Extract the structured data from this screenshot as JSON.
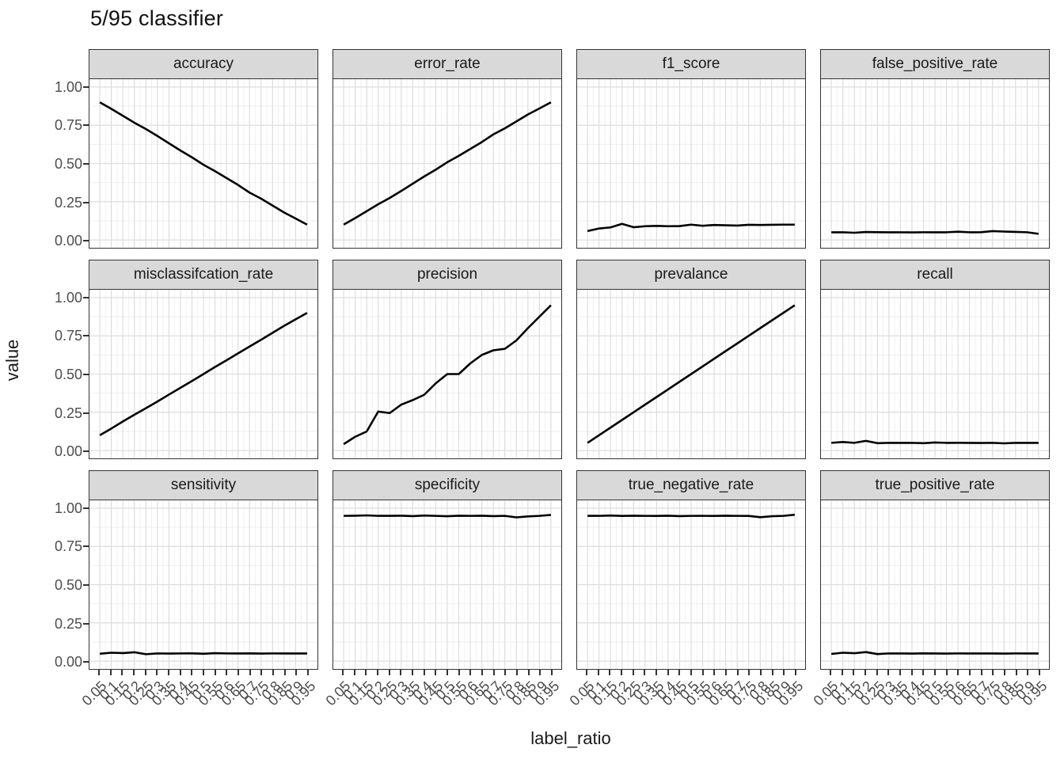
{
  "title": "5/95 classifier",
  "axes": {
    "x_title": "label_ratio",
    "y_title": "value",
    "x_tick_labels": [
      "0.05",
      "0.1",
      "0.15",
      "0.2",
      "0.25",
      "0.3",
      "0.35",
      "0.4",
      "0.45",
      "0.5",
      "0.55",
      "0.6",
      "0.65",
      "0.7",
      "0.75",
      "0.8",
      "0.85",
      "0.9",
      "0.95"
    ],
    "y_tick_labels": [
      "1.00",
      "0.75",
      "0.50",
      "0.25",
      "0.00"
    ],
    "y_tick_values": [
      1.0,
      0.75,
      0.5,
      0.25,
      0.0
    ]
  },
  "colors": {
    "line": "#000000",
    "strip_bg": "#d9d9d9",
    "panel_bg": "#ffffff",
    "panel_border": "#333333",
    "grid_major": "#dddddd",
    "grid_minor": "#efefef",
    "tick": "#333333",
    "tick_text": "#4d4d4d",
    "title_text": "#111111"
  },
  "chart_data": {
    "type": "line",
    "title": "5/95 classifier",
    "xlabel": "label_ratio",
    "ylabel": "value",
    "ylim": [
      0,
      1
    ],
    "grid": "on",
    "legend": "none",
    "layout": "facet-grid-4x3",
    "x": [
      0.05,
      0.1,
      0.15,
      0.2,
      0.25,
      0.3,
      0.35,
      0.4,
      0.45,
      0.5,
      0.55,
      0.6,
      0.65,
      0.7,
      0.75,
      0.8,
      0.85,
      0.9,
      0.95
    ],
    "y_major_gridlines": [
      0,
      0.25,
      0.5,
      0.75,
      1.0
    ],
    "y_minor_gridlines": [
      0.125,
      0.375,
      0.625,
      0.875
    ],
    "facets": [
      {
        "name": "accuracy",
        "values": [
          0.9,
          0.857,
          0.812,
          0.767,
          0.725,
          0.68,
          0.632,
          0.585,
          0.54,
          0.492,
          0.45,
          0.405,
          0.36,
          0.31,
          0.27,
          0.225,
          0.18,
          0.14,
          0.1
        ]
      },
      {
        "name": "error_rate",
        "values": [
          0.1,
          0.143,
          0.188,
          0.233,
          0.275,
          0.32,
          0.368,
          0.415,
          0.46,
          0.508,
          0.55,
          0.595,
          0.64,
          0.69,
          0.73,
          0.775,
          0.82,
          0.86,
          0.9
        ]
      },
      {
        "name": "f1_score",
        "values": [
          0.058,
          0.075,
          0.082,
          0.105,
          0.083,
          0.09,
          0.092,
          0.09,
          0.091,
          0.1,
          0.093,
          0.098,
          0.096,
          0.094,
          0.099,
          0.098,
          0.099,
          0.1,
          0.1
        ]
      },
      {
        "name": "false_positive_rate",
        "values": [
          0.05,
          0.05,
          0.047,
          0.052,
          0.051,
          0.05,
          0.05,
          0.049,
          0.05,
          0.05,
          0.05,
          0.054,
          0.05,
          0.051,
          0.058,
          0.055,
          0.053,
          0.05,
          0.04
        ]
      },
      {
        "name": "misclassifcation_rate",
        "values": [
          0.1,
          0.144,
          0.19,
          0.234,
          0.277,
          0.32,
          0.366,
          0.41,
          0.455,
          0.5,
          0.546,
          0.59,
          0.635,
          0.68,
          0.724,
          0.77,
          0.815,
          0.858,
          0.9
        ]
      },
      {
        "name": "precision",
        "values": [
          0.042,
          0.09,
          0.125,
          0.255,
          0.245,
          0.3,
          0.33,
          0.365,
          0.44,
          0.5,
          0.5,
          0.57,
          0.625,
          0.655,
          0.665,
          0.72,
          0.8,
          0.875,
          0.95
        ]
      },
      {
        "name": "prevalance",
        "values": [
          0.05,
          0.1,
          0.15,
          0.2,
          0.25,
          0.3,
          0.35,
          0.4,
          0.45,
          0.5,
          0.55,
          0.6,
          0.65,
          0.7,
          0.75,
          0.8,
          0.85,
          0.9,
          0.95
        ]
      },
      {
        "name": "recall",
        "values": [
          0.05,
          0.056,
          0.05,
          0.063,
          0.048,
          0.05,
          0.05,
          0.05,
          0.048,
          0.053,
          0.05,
          0.051,
          0.05,
          0.049,
          0.05,
          0.047,
          0.05,
          0.05,
          0.05
        ]
      },
      {
        "name": "sensitivity",
        "values": [
          0.048,
          0.055,
          0.053,
          0.058,
          0.045,
          0.05,
          0.049,
          0.05,
          0.051,
          0.048,
          0.052,
          0.05,
          0.05,
          0.051,
          0.049,
          0.05,
          0.05,
          0.05,
          0.05
        ]
      },
      {
        "name": "specificity",
        "values": [
          0.95,
          0.951,
          0.953,
          0.95,
          0.95,
          0.951,
          0.948,
          0.952,
          0.95,
          0.947,
          0.951,
          0.95,
          0.951,
          0.948,
          0.95,
          0.94,
          0.946,
          0.95,
          0.956
        ]
      },
      {
        "name": "true_negative_rate",
        "values": [
          0.95,
          0.95,
          0.952,
          0.949,
          0.951,
          0.95,
          0.949,
          0.951,
          0.948,
          0.95,
          0.95,
          0.949,
          0.951,
          0.95,
          0.949,
          0.941,
          0.947,
          0.95,
          0.957
        ]
      },
      {
        "name": "true_positive_rate",
        "values": [
          0.047,
          0.055,
          0.052,
          0.059,
          0.046,
          0.05,
          0.05,
          0.049,
          0.051,
          0.05,
          0.049,
          0.05,
          0.05,
          0.05,
          0.05,
          0.049,
          0.05,
          0.05,
          0.05
        ]
      }
    ]
  }
}
